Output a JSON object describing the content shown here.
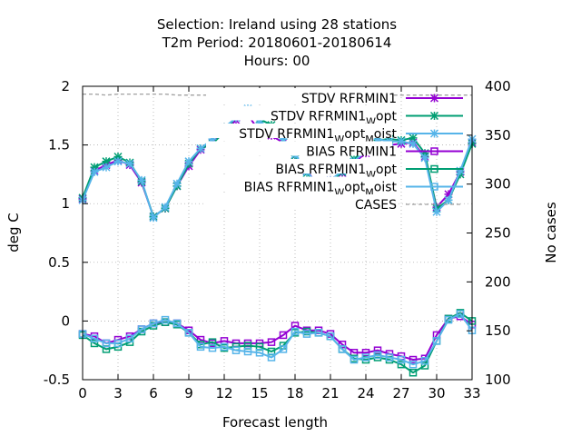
{
  "chart_data": {
    "type": "line",
    "title_lines": [
      "Selection: Ireland using    28 stations",
      "T2m   Period: 20180601-20180614",
      "Hours:  00"
    ],
    "xlabel": "Forecast length",
    "ylabel": "deg C",
    "y2label": "No cases",
    "xlim": [
      0,
      33
    ],
    "ylim": [
      -0.5,
      2
    ],
    "y2lim": [
      100,
      400
    ],
    "xticks": [
      0,
      3,
      6,
      9,
      12,
      15,
      18,
      21,
      24,
      27,
      30,
      33
    ],
    "yticks": [
      -0.5,
      0,
      0.5,
      1,
      1.5,
      2
    ],
    "y2ticks": [
      100,
      150,
      200,
      250,
      300,
      350,
      400
    ],
    "xtick_labels": [
      "0",
      "3",
      "6",
      "9",
      "12",
      "15",
      "18",
      "21",
      "24",
      "27",
      "30",
      "33"
    ],
    "ytick_labels": [
      "-0.5",
      "0",
      "0.5",
      "1",
      "1.5",
      "2"
    ],
    "y2tick_labels": [
      "100",
      "150",
      "200",
      "250",
      "300",
      "350",
      "400"
    ],
    "grid": true,
    "legend_position": "top-right",
    "x": [
      0,
      1,
      2,
      3,
      4,
      5,
      6,
      7,
      8,
      9,
      10,
      11,
      12,
      13,
      14,
      15,
      16,
      17,
      18,
      19,
      20,
      21,
      22,
      23,
      24,
      25,
      26,
      27,
      28,
      29,
      30,
      31,
      32,
      33
    ],
    "series": [
      {
        "name": "STDV RFRMIN1",
        "label_main": "STDV RFRMIN1",
        "label_sub1": "",
        "label_after1": "",
        "label_sub2": "",
        "label_after2": "",
        "color": "#9400d3",
        "marker": "x",
        "axis": "y",
        "values": [
          1.04,
          1.28,
          1.33,
          1.37,
          1.33,
          1.18,
          0.89,
          0.96,
          1.15,
          1.32,
          1.46,
          1.52,
          1.62,
          1.71,
          1.76,
          1.61,
          1.58,
          1.52,
          1.41,
          1.28,
          1.15,
          1.2,
          1.26,
          1.35,
          1.43,
          1.5,
          1.5,
          1.51,
          1.52,
          1.4,
          0.97,
          1.08,
          1.27,
          1.52
        ]
      },
      {
        "name": "STDV RFRMIN1 W opt",
        "label_main": "STDV RFRMIN1",
        "label_sub1": "W",
        "label_after1": "opt",
        "label_sub2": "",
        "label_after2": "",
        "color": "#009e73",
        "marker": "x",
        "axis": "y",
        "values": [
          1.05,
          1.31,
          1.36,
          1.4,
          1.35,
          1.19,
          0.89,
          0.96,
          1.15,
          1.34,
          1.47,
          1.51,
          1.61,
          1.74,
          1.79,
          1.72,
          1.67,
          1.55,
          1.41,
          1.26,
          1.14,
          1.18,
          1.27,
          1.38,
          1.47,
          1.54,
          1.55,
          1.54,
          1.56,
          1.43,
          0.96,
          1.03,
          1.25,
          1.51
        ]
      },
      {
        "name": "STDV RFRMIN1 W opt M oist",
        "label_main": "STDV RFRMIN1",
        "label_sub1": "W",
        "label_after1": "opt",
        "label_sub2": "M",
        "label_after2": "oist",
        "color": "#56b4e9",
        "marker": "x",
        "axis": "y",
        "values": [
          1.03,
          1.27,
          1.31,
          1.36,
          1.34,
          1.2,
          0.88,
          0.97,
          1.17,
          1.36,
          1.47,
          1.55,
          1.65,
          1.73,
          1.81,
          1.69,
          1.62,
          1.55,
          1.42,
          1.27,
          1.16,
          1.2,
          1.28,
          1.36,
          1.45,
          1.55,
          1.53,
          1.53,
          1.51,
          1.39,
          0.93,
          1.03,
          1.28,
          1.55
        ]
      },
      {
        "name": "BIAS RFRMIN1",
        "label_main": "BIAS RFRMIN1",
        "label_sub1": "",
        "label_after1": "",
        "label_sub2": "",
        "label_after2": "",
        "color": "#9400d3",
        "marker": "square",
        "axis": "y",
        "values": [
          -0.11,
          -0.13,
          -0.19,
          -0.16,
          -0.13,
          -0.07,
          -0.02,
          -0.01,
          -0.02,
          -0.08,
          -0.16,
          -0.19,
          -0.17,
          -0.19,
          -0.19,
          -0.19,
          -0.18,
          -0.12,
          -0.04,
          -0.08,
          -0.08,
          -0.11,
          -0.2,
          -0.27,
          -0.27,
          -0.25,
          -0.28,
          -0.3,
          -0.33,
          -0.32,
          -0.12,
          0.02,
          0.04,
          -0.03
        ]
      },
      {
        "name": "BIAS RFRMIN1 W opt",
        "label_main": "BIAS RFRMIN1",
        "label_sub1": "W",
        "label_after1": "opt",
        "label_sub2": "",
        "label_after2": "",
        "color": "#009e73",
        "marker": "square",
        "axis": "y",
        "values": [
          -0.12,
          -0.19,
          -0.24,
          -0.22,
          -0.18,
          -0.09,
          -0.04,
          -0.01,
          -0.03,
          -0.1,
          -0.2,
          -0.18,
          -0.23,
          -0.22,
          -0.21,
          -0.22,
          -0.26,
          -0.21,
          -0.1,
          -0.09,
          -0.1,
          -0.13,
          -0.24,
          -0.32,
          -0.33,
          -0.31,
          -0.33,
          -0.37,
          -0.44,
          -0.38,
          -0.17,
          0.02,
          0.07,
          0.0
        ]
      },
      {
        "name": "BIAS RFRMIN1 W opt M oist",
        "label_main": "BIAS RFRMIN1",
        "label_sub1": "W",
        "label_after1": "opt",
        "label_sub2": "M",
        "label_after2": "oist",
        "color": "#56b4e9",
        "marker": "square",
        "axis": "y",
        "values": [
          -0.11,
          -0.15,
          -0.19,
          -0.19,
          -0.15,
          -0.07,
          -0.02,
          0.01,
          -0.02,
          -0.1,
          -0.22,
          -0.23,
          -0.22,
          -0.25,
          -0.26,
          -0.27,
          -0.31,
          -0.24,
          -0.09,
          -0.11,
          -0.1,
          -0.13,
          -0.24,
          -0.33,
          -0.31,
          -0.29,
          -0.31,
          -0.33,
          -0.37,
          -0.34,
          -0.17,
          0.01,
          0.06,
          -0.08
        ]
      },
      {
        "name": "CASES",
        "label_main": "CASES",
        "label_sub1": "",
        "label_after1": "",
        "label_sub2": "",
        "label_after2": "",
        "color": "#a0a0a0",
        "marker": "none",
        "dash": true,
        "axis": "y2",
        "values": [
          392,
          392,
          391,
          392,
          392,
          392,
          392,
          392,
          391,
          391,
          391,
          391,
          391,
          391,
          391,
          390,
          391,
          391,
          391,
          391,
          391,
          391,
          391,
          391,
          391,
          391,
          391,
          391,
          391,
          391,
          391,
          391,
          391,
          391
        ]
      }
    ]
  }
}
